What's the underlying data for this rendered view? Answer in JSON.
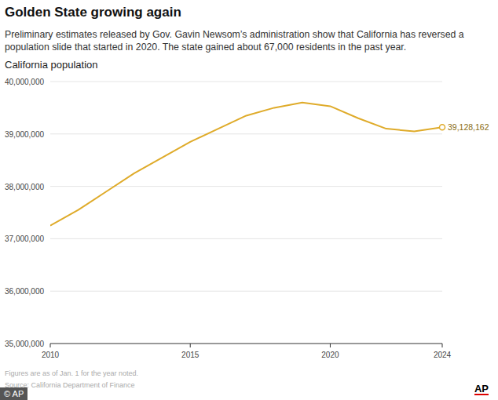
{
  "chart_data": {
    "type": "line",
    "title": "Golden State growing again",
    "subtitle": "Preliminary estimates released by Gov. Gavin Newsom’s administration show that California has reversed a population slide that started in 2020. The state gained about 67,000 residents in the past year.",
    "y_label": "California population",
    "x": [
      2010,
      2011,
      2012,
      2013,
      2014,
      2015,
      2016,
      2017,
      2018,
      2019,
      2020,
      2021,
      2022,
      2023,
      2024
    ],
    "values": [
      37250000,
      37550000,
      37900000,
      38250000,
      38550000,
      38850000,
      39100000,
      39350000,
      39500000,
      39600000,
      39530000,
      39300000,
      39100000,
      39050000,
      39128162
    ],
    "value_labels": [
      null,
      null,
      null,
      null,
      null,
      null,
      null,
      null,
      null,
      null,
      null,
      null,
      null,
      null,
      "39,128,162"
    ],
    "color": "#dfab2a",
    "xlim": [
      2010,
      2024
    ],
    "xticks": [
      2010,
      2015,
      2020,
      2024
    ],
    "ylim": [
      35000000,
      40000000
    ],
    "yticks": [
      {
        "value": 35000000,
        "label": "35,000,000"
      },
      {
        "value": 36000000,
        "label": "36,000,000"
      },
      {
        "value": 37000000,
        "label": "37,000,000"
      },
      {
        "value": 38000000,
        "label": "38,000,000"
      },
      {
        "value": 39000000,
        "label": "39,000,000"
      },
      {
        "value": 40000000,
        "label": "40,000,000"
      }
    ],
    "grid": true,
    "notes": [
      "Figures are as of Jan. 1 for the year noted.",
      "Source: California Department of Finance"
    ],
    "logo": "AP",
    "credit": "© AP"
  }
}
